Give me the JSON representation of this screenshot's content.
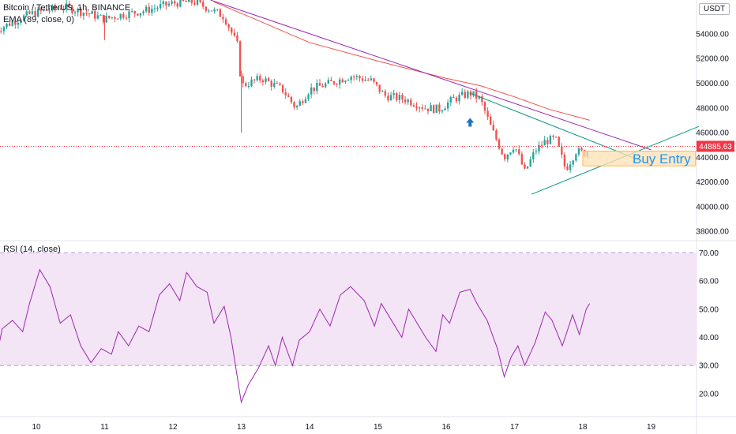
{
  "header": {
    "symbol": "Bitcoin / TetherUS, 1h, BINANCE",
    "indicator": "EMA (89, close, 0)",
    "currency": "USDT",
    "top_clip_label": "5"
  },
  "rsi_panel": {
    "title": "RSI (14, close)"
  },
  "price_tag": {
    "value": "44885.63",
    "color": "#f23645"
  },
  "annotation": {
    "text": "Buy Entry",
    "color": "#2196f3"
  },
  "colors": {
    "up": "#26a69a",
    "down": "#ef5350",
    "ema": "#ef5350",
    "trend1": "#9c27b0",
    "trend2": "#089981",
    "rsi_line": "#9c27b0",
    "rsi_band": "#f3e5f5",
    "zone": "#ffe0b2"
  },
  "chart_data": [
    {
      "type": "candlestick",
      "title": "Bitcoin / TetherUS, 1h, BINANCE",
      "x_labels": [
        "10",
        "11",
        "12",
        "13",
        "14",
        "15",
        "16",
        "17",
        "18",
        "19"
      ],
      "y_ticks": [
        38000,
        40000,
        42000,
        44000,
        46000,
        48000,
        50000,
        52000,
        54000
      ],
      "ylim": [
        37300,
        56750
      ],
      "close_path": [
        {
          "x": 9.4,
          "y": 54300
        },
        {
          "x": 9.9,
          "y": 55600
        },
        {
          "x": 10.4,
          "y": 56200
        },
        {
          "x": 10.8,
          "y": 55600
        },
        {
          "x": 11.0,
          "y": 55200
        },
        {
          "x": 11.2,
          "y": 55500
        },
        {
          "x": 11.6,
          "y": 55900
        },
        {
          "x": 12.0,
          "y": 56500
        },
        {
          "x": 12.3,
          "y": 56600
        },
        {
          "x": 12.55,
          "y": 56000
        },
        {
          "x": 12.75,
          "y": 55400
        },
        {
          "x": 12.95,
          "y": 53000
        },
        {
          "x": 13.0,
          "y": 49800
        },
        {
          "x": 13.3,
          "y": 50400
        },
        {
          "x": 13.6,
          "y": 49500
        },
        {
          "x": 13.8,
          "y": 48000
        },
        {
          "x": 14.0,
          "y": 49500
        },
        {
          "x": 14.3,
          "y": 50000
        },
        {
          "x": 14.6,
          "y": 50600
        },
        {
          "x": 14.9,
          "y": 50200
        },
        {
          "x": 15.1,
          "y": 49000
        },
        {
          "x": 15.4,
          "y": 48700
        },
        {
          "x": 15.7,
          "y": 48000
        },
        {
          "x": 15.9,
          "y": 47900
        },
        {
          "x": 16.1,
          "y": 48700
        },
        {
          "x": 16.35,
          "y": 49200
        },
        {
          "x": 16.5,
          "y": 48700
        },
        {
          "x": 16.65,
          "y": 46500
        },
        {
          "x": 16.85,
          "y": 44000
        },
        {
          "x": 17.0,
          "y": 45000
        },
        {
          "x": 17.15,
          "y": 42800
        },
        {
          "x": 17.3,
          "y": 44500
        },
        {
          "x": 17.45,
          "y": 45300
        },
        {
          "x": 17.6,
          "y": 45500
        },
        {
          "x": 17.75,
          "y": 43000
        },
        {
          "x": 17.9,
          "y": 44500
        },
        {
          "x": 18.05,
          "y": 44300
        },
        {
          "x": 18.1,
          "y": 44885
        }
      ],
      "series": [
        {
          "name": "EMA (89, close, 0)",
          "points": [
            {
              "x": 12.6,
              "y": 56600
            },
            {
              "x": 13.2,
              "y": 55200
            },
            {
              "x": 14.0,
              "y": 53300
            },
            {
              "x": 15.0,
              "y": 51800
            },
            {
              "x": 16.0,
              "y": 50400
            },
            {
              "x": 16.5,
              "y": 49800
            },
            {
              "x": 17.0,
              "y": 48900
            },
            {
              "x": 17.5,
              "y": 47900
            },
            {
              "x": 18.1,
              "y": 47000
            }
          ]
        }
      ],
      "trendlines": [
        {
          "from": {
            "x": 12.55,
            "y": 56750
          },
          "to": {
            "x": 19.0,
            "y": 44600
          }
        },
        {
          "from": {
            "x": 16.35,
            "y": 49200
          },
          "to": {
            "x": 19.0,
            "y": 43400
          }
        },
        {
          "from": {
            "x": 17.25,
            "y": 41000
          },
          "to": {
            "x": 19.7,
            "y": 46500
          }
        }
      ],
      "zone": {
        "x_from": 18.0,
        "x_to": 19.65,
        "y_from": 43300,
        "y_to": 44500
      },
      "marker": {
        "type": "arrow-up",
        "x": 16.35,
        "y": 46800
      }
    },
    {
      "type": "line",
      "title": "RSI (14, close)",
      "y_ticks": [
        20,
        30,
        40,
        50,
        60,
        70
      ],
      "ylim": [
        13,
        74
      ],
      "band": [
        30,
        70
      ],
      "series": [
        {
          "name": "RSI (14, close)",
          "points": [
            {
              "x": 9.4,
              "y": 31
            },
            {
              "x": 9.5,
              "y": 43
            },
            {
              "x": 9.65,
              "y": 46
            },
            {
              "x": 9.8,
              "y": 42
            },
            {
              "x": 9.9,
              "y": 52
            },
            {
              "x": 10.05,
              "y": 64
            },
            {
              "x": 10.2,
              "y": 58
            },
            {
              "x": 10.35,
              "y": 45
            },
            {
              "x": 10.5,
              "y": 48
            },
            {
              "x": 10.65,
              "y": 37
            },
            {
              "x": 10.8,
              "y": 31
            },
            {
              "x": 10.95,
              "y": 36
            },
            {
              "x": 11.1,
              "y": 34
            },
            {
              "x": 11.2,
              "y": 42
            },
            {
              "x": 11.35,
              "y": 37
            },
            {
              "x": 11.5,
              "y": 44
            },
            {
              "x": 11.65,
              "y": 42
            },
            {
              "x": 11.8,
              "y": 55
            },
            {
              "x": 11.95,
              "y": 59
            },
            {
              "x": 12.1,
              "y": 53
            },
            {
              "x": 12.2,
              "y": 63
            },
            {
              "x": 12.35,
              "y": 58
            },
            {
              "x": 12.5,
              "y": 56
            },
            {
              "x": 12.6,
              "y": 45
            },
            {
              "x": 12.75,
              "y": 51
            },
            {
              "x": 12.85,
              "y": 40
            },
            {
              "x": 13.0,
              "y": 17
            },
            {
              "x": 13.1,
              "y": 23
            },
            {
              "x": 13.25,
              "y": 29
            },
            {
              "x": 13.4,
              "y": 37
            },
            {
              "x": 13.5,
              "y": 30
            },
            {
              "x": 13.6,
              "y": 40
            },
            {
              "x": 13.75,
              "y": 30
            },
            {
              "x": 13.85,
              "y": 39
            },
            {
              "x": 14.0,
              "y": 42
            },
            {
              "x": 14.15,
              "y": 50
            },
            {
              "x": 14.3,
              "y": 44
            },
            {
              "x": 14.45,
              "y": 55
            },
            {
              "x": 14.6,
              "y": 58
            },
            {
              "x": 14.8,
              "y": 53
            },
            {
              "x": 14.95,
              "y": 44
            },
            {
              "x": 15.05,
              "y": 52
            },
            {
              "x": 15.2,
              "y": 46
            },
            {
              "x": 15.35,
              "y": 40
            },
            {
              "x": 15.45,
              "y": 50
            },
            {
              "x": 15.6,
              "y": 44
            },
            {
              "x": 15.7,
              "y": 40
            },
            {
              "x": 15.85,
              "y": 35
            },
            {
              "x": 15.95,
              "y": 48
            },
            {
              "x": 16.05,
              "y": 45
            },
            {
              "x": 16.2,
              "y": 56
            },
            {
              "x": 16.35,
              "y": 57
            },
            {
              "x": 16.45,
              "y": 52
            },
            {
              "x": 16.6,
              "y": 46
            },
            {
              "x": 16.75,
              "y": 36
            },
            {
              "x": 16.85,
              "y": 26
            },
            {
              "x": 16.95,
              "y": 33
            },
            {
              "x": 17.05,
              "y": 37
            },
            {
              "x": 17.15,
              "y": 30
            },
            {
              "x": 17.3,
              "y": 38
            },
            {
              "x": 17.45,
              "y": 49
            },
            {
              "x": 17.55,
              "y": 46
            },
            {
              "x": 17.7,
              "y": 37
            },
            {
              "x": 17.85,
              "y": 48
            },
            {
              "x": 17.95,
              "y": 41
            },
            {
              "x": 18.05,
              "y": 50
            },
            {
              "x": 18.1,
              "y": 52
            }
          ]
        }
      ]
    }
  ]
}
